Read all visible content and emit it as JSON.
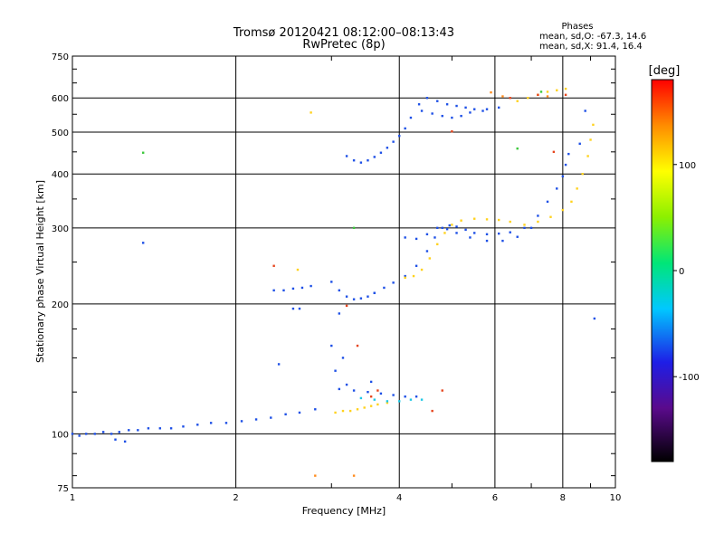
{
  "chart_data": {
    "type": "scatter",
    "title": "Tromsø 20120421 08:12:00–08:13:43",
    "subtitle": "RwPretec (8p)",
    "phase_header": "Phases",
    "phase_o": "mean, sd,O: -67.3, 14.6",
    "phase_x": "mean, sd,X:  91.4, 16.4",
    "xlabel": "Frequency [MHz]",
    "ylabel": "Stationary phase Virtual Height [km]",
    "xscale": "log",
    "yscale": "log",
    "xlim": [
      1,
      10
    ],
    "ylim": [
      75,
      750
    ],
    "x_ticks": [
      1,
      2,
      4,
      6,
      8,
      10
    ],
    "x_tick_labels": [
      "1",
      "2",
      "4",
      "6",
      "8",
      "10"
    ],
    "y_ticks": [
      75,
      100,
      200,
      300,
      400,
      500,
      600,
      750
    ],
    "y_tick_labels": [
      "75",
      "100",
      "200",
      "300",
      "400",
      "500",
      "600",
      "750"
    ],
    "grid": true,
    "colorbar": {
      "label": "[deg]",
      "range": [
        -180,
        180
      ],
      "ticks": [
        100,
        0,
        -100
      ],
      "tick_labels": [
        "100",
        "0",
        "-100"
      ]
    },
    "series": [
      {
        "color": "#1e50e6",
        "points": [
          [
            1.0,
            100
          ],
          [
            1.03,
            99
          ],
          [
            1.06,
            100
          ],
          [
            1.1,
            100
          ],
          [
            1.14,
            101
          ],
          [
            1.18,
            100
          ],
          [
            1.22,
            101
          ],
          [
            1.27,
            102
          ],
          [
            1.32,
            102
          ],
          [
            1.38,
            103
          ],
          [
            1.45,
            103
          ],
          [
            1.52,
            103
          ],
          [
            1.6,
            104
          ],
          [
            1.7,
            105
          ],
          [
            1.8,
            106
          ],
          [
            1.92,
            106
          ],
          [
            2.05,
            107
          ],
          [
            2.18,
            108
          ],
          [
            2.32,
            109
          ],
          [
            2.47,
            111
          ],
          [
            2.62,
            112
          ],
          [
            2.8,
            114
          ],
          [
            1.2,
            97
          ],
          [
            1.25,
            96
          ],
          [
            2.35,
            215
          ],
          [
            2.45,
            215
          ],
          [
            2.55,
            217
          ],
          [
            2.65,
            218
          ],
          [
            2.75,
            220
          ],
          [
            3.0,
            225
          ],
          [
            3.1,
            215
          ],
          [
            3.2,
            208
          ],
          [
            3.3,
            205
          ],
          [
            3.4,
            206
          ],
          [
            3.5,
            208
          ],
          [
            3.6,
            212
          ],
          [
            3.75,
            218
          ],
          [
            3.9,
            224
          ],
          [
            4.1,
            232
          ],
          [
            4.3,
            245
          ],
          [
            4.5,
            265
          ],
          [
            4.65,
            285
          ],
          [
            4.8,
            300
          ],
          [
            4.95,
            304
          ],
          [
            5.1,
            302
          ],
          [
            5.3,
            297
          ],
          [
            5.5,
            292
          ],
          [
            5.8,
            290
          ],
          [
            6.1,
            291
          ],
          [
            6.4,
            293
          ],
          [
            6.8,
            300
          ],
          [
            7.2,
            320
          ],
          [
            7.5,
            345
          ],
          [
            7.8,
            370
          ],
          [
            8.0,
            395
          ],
          [
            8.1,
            420
          ],
          [
            8.2,
            445
          ],
          [
            4.1,
            285
          ],
          [
            4.3,
            283
          ],
          [
            4.5,
            290
          ],
          [
            4.7,
            300
          ],
          [
            4.9,
            298
          ],
          [
            5.1,
            292
          ],
          [
            5.4,
            285
          ],
          [
            5.8,
            280
          ],
          [
            6.2,
            280
          ],
          [
            6.6,
            286
          ],
          [
            7.0,
            300
          ],
          [
            3.2,
            440
          ],
          [
            3.3,
            430
          ],
          [
            3.4,
            425
          ],
          [
            3.5,
            430
          ],
          [
            3.6,
            438
          ],
          [
            3.7,
            448
          ],
          [
            3.8,
            460
          ],
          [
            3.9,
            475
          ],
          [
            4.0,
            490
          ],
          [
            4.1,
            510
          ],
          [
            4.2,
            540
          ],
          [
            4.35,
            580
          ],
          [
            4.5,
            600
          ],
          [
            4.7,
            590
          ],
          [
            4.9,
            580
          ],
          [
            5.1,
            575
          ],
          [
            5.3,
            570
          ],
          [
            5.5,
            565
          ],
          [
            5.8,
            565
          ],
          [
            6.1,
            570
          ],
          [
            4.4,
            560
          ],
          [
            4.6,
            552
          ],
          [
            4.8,
            545
          ],
          [
            5.0,
            540
          ],
          [
            5.2,
            545
          ],
          [
            5.4,
            555
          ],
          [
            5.7,
            560
          ],
          [
            3.1,
            127
          ],
          [
            3.3,
            126
          ],
          [
            3.5,
            125
          ],
          [
            3.7,
            124
          ],
          [
            3.9,
            123
          ],
          [
            4.1,
            122
          ],
          [
            4.3,
            122
          ],
          [
            3.05,
            140
          ],
          [
            3.2,
            130
          ],
          [
            3.55,
            132
          ],
          [
            2.4,
            145
          ],
          [
            3.0,
            160
          ],
          [
            3.15,
            150
          ],
          [
            1.35,
            277
          ],
          [
            2.55,
            195
          ],
          [
            2.62,
            195
          ],
          [
            3.1,
            190
          ],
          [
            9.15,
            185
          ],
          [
            3.6,
            212
          ],
          [
            8.6,
            470
          ],
          [
            8.8,
            560
          ]
        ]
      },
      {
        "color": "#ffd21e",
        "points": [
          [
            3.05,
            112
          ],
          [
            3.15,
            113
          ],
          [
            3.25,
            113
          ],
          [
            3.35,
            114
          ],
          [
            3.45,
            115
          ],
          [
            3.55,
            116
          ],
          [
            3.65,
            117
          ],
          [
            3.8,
            118
          ],
          [
            4.1,
            230
          ],
          [
            4.25,
            232
          ],
          [
            4.4,
            240
          ],
          [
            4.55,
            255
          ],
          [
            4.7,
            275
          ],
          [
            4.85,
            292
          ],
          [
            5.0,
            305
          ],
          [
            5.2,
            312
          ],
          [
            5.5,
            315
          ],
          [
            5.8,
            314
          ],
          [
            6.1,
            313
          ],
          [
            6.4,
            310
          ],
          [
            6.8,
            305
          ],
          [
            7.2,
            310
          ],
          [
            7.6,
            318
          ],
          [
            8.0,
            330
          ],
          [
            8.3,
            345
          ],
          [
            8.5,
            370
          ],
          [
            8.7,
            400
          ],
          [
            8.9,
            440
          ],
          [
            9.0,
            480
          ],
          [
            9.1,
            520
          ],
          [
            6.6,
            590
          ],
          [
            6.9,
            600
          ],
          [
            7.2,
            610
          ],
          [
            7.5,
            620
          ],
          [
            7.8,
            625
          ],
          [
            8.1,
            630
          ],
          [
            2.75,
            555
          ],
          [
            2.6,
            240
          ]
        ]
      },
      {
        "color": "#1ec8e6",
        "points": [
          [
            3.6,
            120
          ],
          [
            3.8,
            119
          ],
          [
            4.0,
            119
          ],
          [
            4.2,
            120
          ],
          [
            4.4,
            120
          ],
          [
            3.4,
            121
          ]
        ]
      },
      {
        "color": "#e6461e",
        "points": [
          [
            2.35,
            245
          ],
          [
            3.2,
            198
          ],
          [
            3.35,
            160
          ],
          [
            3.55,
            122
          ],
          [
            3.65,
            126
          ],
          [
            5.0,
            502
          ],
          [
            6.4,
            600
          ],
          [
            7.2,
            610
          ],
          [
            8.1,
            610
          ],
          [
            4.8,
            126
          ],
          [
            7.7,
            450
          ],
          [
            4.6,
            113
          ]
        ]
      },
      {
        "color": "#3cc83c",
        "points": [
          [
            1.35,
            448
          ],
          [
            3.3,
            300
          ],
          [
            6.6,
            458
          ],
          [
            7.3,
            620
          ]
        ]
      },
      {
        "color": "#ff8c1e",
        "points": [
          [
            5.9,
            618
          ],
          [
            6.2,
            605
          ],
          [
            7.5,
            605
          ],
          [
            2.8,
            80
          ],
          [
            3.3,
            80
          ]
        ]
      }
    ]
  }
}
